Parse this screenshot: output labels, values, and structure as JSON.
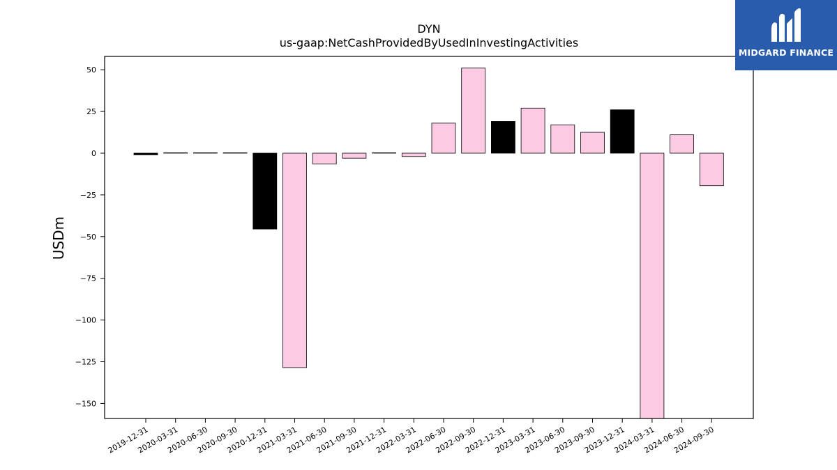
{
  "chart_data": {
    "type": "bar",
    "title": "DYN",
    "subtitle": "us-gaap:NetCashProvidedByUsedInInvestingActivities",
    "ylabel": "USDm",
    "xlabel": "",
    "ylim": [
      -159,
      58
    ],
    "yticks": [
      50,
      25,
      0,
      -25,
      -50,
      -75,
      -100,
      -125,
      -150
    ],
    "ytick_labels": [
      "50",
      "25",
      "0",
      "−25",
      "−50",
      "−75",
      "−100",
      "−125",
      "−150"
    ],
    "categories": [
      "2019-12-31",
      "2020-03-31",
      "2020-06-30",
      "2020-09-30",
      "2020-12-31",
      "2021-03-31",
      "2021-06-30",
      "2021-09-30",
      "2021-12-31",
      "2022-03-31",
      "2022-06-30",
      "2022-09-30",
      "2022-12-31",
      "2023-03-31",
      "2023-06-30",
      "2023-09-30",
      "2023-12-31",
      "2024-03-31",
      "2024-06-30",
      "2024-09-30"
    ],
    "values": [
      -1,
      0,
      0,
      0,
      -45.5,
      -128.5,
      -6.5,
      -3,
      0,
      -2,
      18,
      51,
      19,
      27,
      17,
      12.5,
      26,
      -159,
      11,
      -19.5
    ],
    "colors": [
      "#000000",
      "#000000",
      "#000000",
      "#000000",
      "#000000",
      "#fccbe3",
      "#fccbe3",
      "#fccbe3",
      "#000000",
      "#fccbe3",
      "#fccbe3",
      "#fccbe3",
      "#000000",
      "#fccbe3",
      "#fccbe3",
      "#fccbe3",
      "#000000",
      "#fccbe3",
      "#fccbe3",
      "#fccbe3"
    ],
    "grid": false,
    "legend": "none"
  },
  "logo": {
    "name": "MIDGARD FINANCE",
    "background": "#2a5cad"
  }
}
